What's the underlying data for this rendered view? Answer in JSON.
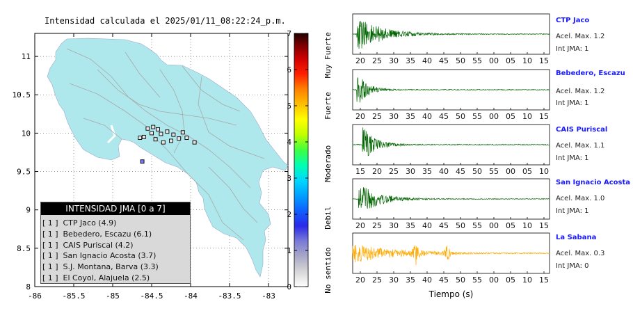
{
  "map": {
    "title": "Intensidad calculada el 2025/01/11_08:22:24_p.m.",
    "x_ticks": [
      "-86",
      "-85.5",
      "-85",
      "-84.5",
      "-84",
      "-83.5",
      "-83"
    ],
    "y_ticks": [
      "11",
      "10.5",
      "10",
      "9.5",
      "9",
      "8.5",
      "8"
    ],
    "xlim": [
      -86,
      -82.75
    ],
    "ylim": [
      8,
      11.3
    ],
    "land_color": "#aee8ec"
  },
  "colorbar": {
    "ticks": [
      "0",
      "1",
      "2",
      "3",
      "4",
      "5",
      "6",
      "7"
    ],
    "labels": [
      "No sentido",
      "Debil",
      "Moderado",
      "Fuerte",
      "Muy Fuerte"
    ]
  },
  "legend": {
    "title": "INTENSIDAD JMA [0 a 7]",
    "items": [
      {
        "level": "[ 1 ]",
        "name": "CTP Jaco (4.9)"
      },
      {
        "level": "[ 1 ]",
        "name": "Bebedero, Escazu (6.1)"
      },
      {
        "level": "[ 1 ]",
        "name": "CAIS Puriscal (4.2)"
      },
      {
        "level": "[ 1 ]",
        "name": "San Ignacio Acosta (3.7)"
      },
      {
        "level": "[ 1 ]",
        "name": "S.J. Montana, Barva (3.3)"
      },
      {
        "level": "[ 1 ]",
        "name": "El Coyol, Alajuela (2.5)"
      }
    ]
  },
  "stations": [
    {
      "name": "CTP Jaco",
      "accel_label": "Acel. Max. 1.2",
      "int_label": "Int JMA: 1",
      "color": "#006400",
      "ticks": [
        "20",
        "25",
        "30",
        "35",
        "40",
        "45",
        "50",
        "55",
        "00",
        "05",
        "10",
        "15"
      ]
    },
    {
      "name": "Bebedero, Escazu",
      "accel_label": "Acel. Max. 1.2",
      "int_label": "Int JMA: 1",
      "color": "#006400",
      "ticks": [
        "20",
        "25",
        "30",
        "35",
        "40",
        "45",
        "50",
        "55",
        "00",
        "05",
        "10",
        "15"
      ]
    },
    {
      "name": "CAIS Puriscal",
      "accel_label": "Acel. Max. 1.1",
      "int_label": "Int JMA: 1",
      "color": "#006400",
      "ticks": [
        "15",
        "20",
        "25",
        "30",
        "35",
        "40",
        "45",
        "50",
        "55",
        "00",
        "05",
        "10"
      ]
    },
    {
      "name": "San Ignacio Acosta",
      "accel_label": "Acel. Max. 1.0",
      "int_label": "Int JMA: 1",
      "color": "#006400",
      "ticks": [
        "20",
        "25",
        "30",
        "35",
        "40",
        "45",
        "50",
        "55",
        "00",
        "05",
        "10",
        "15"
      ]
    },
    {
      "name": "La Sabana",
      "accel_label": "Acel. Max. 0.3",
      "int_label": "Int JMA: 0",
      "color": "#ffaa00",
      "ticks": [
        "20",
        "25",
        "30",
        "35",
        "40",
        "45",
        "50",
        "55",
        "00",
        "05",
        "10",
        "15"
      ]
    }
  ],
  "waveform_xlabel": "Tiempo (s)",
  "chart_data": [
    {
      "type": "scatter",
      "title": "Intensidad calculada el 2025/01/11_08:22:24_p.m.",
      "xlim": [
        -86,
        -82.75
      ],
      "ylim": [
        8,
        11.3
      ],
      "x_ticks": [
        -86,
        -85.5,
        -85,
        -84.5,
        -84,
        -83.5,
        -83
      ],
      "y_ticks": [
        8,
        8.5,
        9,
        9.5,
        10,
        10.5,
        11
      ],
      "points": [
        {
          "x": -84.55,
          "y": 10.06
        },
        {
          "x": -84.48,
          "y": 10.08
        },
        {
          "x": -84.42,
          "y": 10.05
        },
        {
          "x": -84.5,
          "y": 10.0
        },
        {
          "x": -84.38,
          "y": 9.99
        },
        {
          "x": -84.3,
          "y": 10.02
        },
        {
          "x": -84.22,
          "y": 9.98
        },
        {
          "x": -84.1,
          "y": 10.01
        },
        {
          "x": -84.6,
          "y": 9.95
        },
        {
          "x": -84.45,
          "y": 9.92
        },
        {
          "x": -84.15,
          "y": 9.93
        },
        {
          "x": -84.05,
          "y": 9.94
        },
        {
          "x": -84.65,
          "y": 9.94
        },
        {
          "x": -84.35,
          "y": 9.88
        },
        {
          "x": -83.95,
          "y": 9.88
        },
        {
          "x": -84.25,
          "y": 9.9
        },
        {
          "x": -84.62,
          "y": 9.63
        }
      ],
      "grid": true
    },
    {
      "type": "line",
      "xlabel": "Tiempo (s)",
      "series": [
        {
          "name": "CTP Jaco",
          "peak_accel": 1.2,
          "intensity": 1
        },
        {
          "name": "Bebedero, Escazu",
          "peak_accel": 1.2,
          "intensity": 1
        },
        {
          "name": "CAIS Puriscal",
          "peak_accel": 1.1,
          "intensity": 1
        },
        {
          "name": "San Ignacio Acosta",
          "peak_accel": 1.0,
          "intensity": 1
        },
        {
          "name": "La Sabana",
          "peak_accel": 0.3,
          "intensity": 0
        }
      ]
    }
  ]
}
